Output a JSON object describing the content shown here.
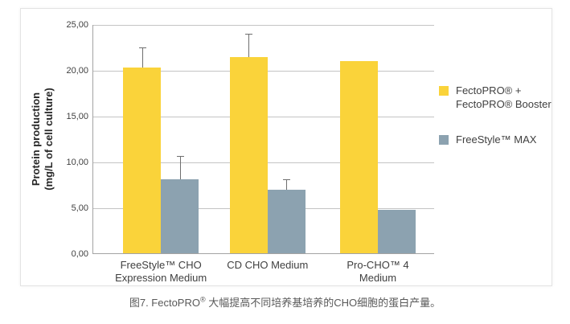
{
  "figure": {
    "caption": {
      "prefix": "图7. FectoPRO",
      "sup": "®",
      "text": " 大幅提高不同培养基培养的CHO细胞的蛋白产量。"
    }
  },
  "chart_data": {
    "type": "bar",
    "title": "",
    "xlabel": "",
    "ylabel_lines": [
      "Protein production",
      "(mg/L of cell culture)"
    ],
    "ylim": [
      0,
      25
    ],
    "grid": true,
    "legend_position": "right",
    "yticks": [
      {
        "value": 0,
        "label": "0,00"
      },
      {
        "value": 5,
        "label": "5,00"
      },
      {
        "value": 10,
        "label": "10,00"
      },
      {
        "value": 15,
        "label": "15,00"
      },
      {
        "value": 20,
        "label": "20,00"
      },
      {
        "value": 25,
        "label": "25,00"
      }
    ],
    "categories": [
      {
        "key": "freestyle-cho-expression-medium",
        "lines": [
          "FreeStyle™ CHO",
          "Expression  Medium"
        ]
      },
      {
        "key": "cd-cho-medium",
        "lines": [
          "CD CHO Medium"
        ]
      },
      {
        "key": "pro-cho-4-medium",
        "lines": [
          "Pro-CHO™ 4",
          "Medium"
        ]
      }
    ],
    "series": [
      {
        "key": "fectopro-plus-booster",
        "name_lines": [
          "FectoPRO® +",
          "FectoPRO® Booster"
        ],
        "color": "#FAD33A",
        "values": [
          20.3,
          21.4,
          21.0
        ],
        "error_up": [
          2.1,
          2.5,
          0
        ]
      },
      {
        "key": "freestyle-max",
        "name_lines": [
          "FreeStyle™ MAX"
        ],
        "color": "#8CA2B0",
        "values": [
          8.1,
          6.9,
          4.7
        ],
        "error_up": [
          2.4,
          1.1,
          0
        ]
      }
    ],
    "colors": {
      "gridline": "#C4C4C4",
      "axis": "#A3A3A3",
      "error_bar": "#6E6E6E",
      "tick_text": "#404040",
      "label_text": "#3F3F3F",
      "caption_text": "#595959"
    }
  }
}
